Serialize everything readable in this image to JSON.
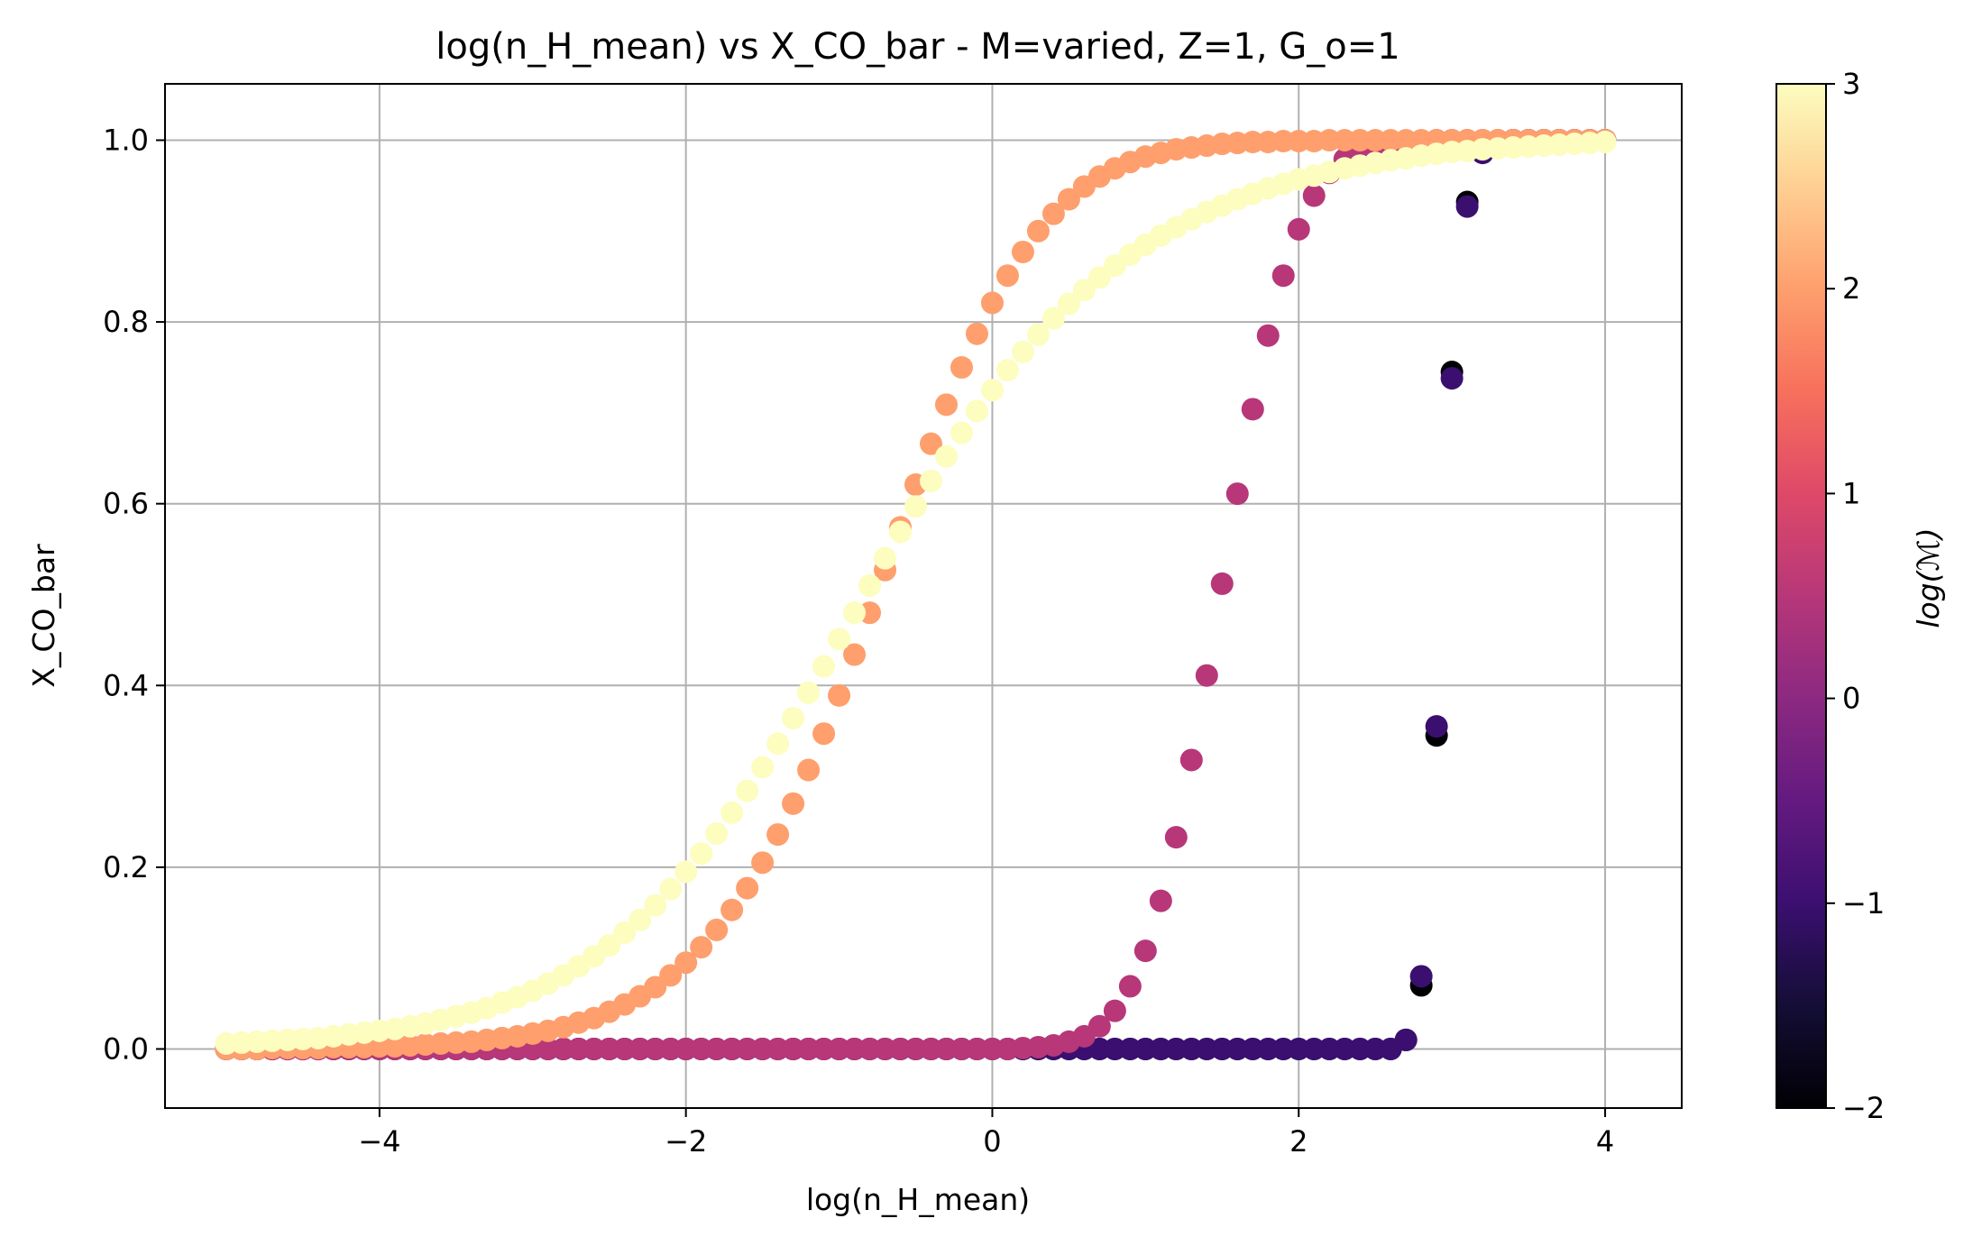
{
  "chart_data": {
    "type": "scatter",
    "title": "log(n_H_mean) vs X_CO_bar - M=varied, Z=1, G_o=1",
    "xlabel": "log(n_H_mean)",
    "ylabel": "X_CO_bar",
    "xlim": [
      -5.4,
      4.5
    ],
    "ylim": [
      -0.065,
      1.062
    ],
    "xticks": [
      -4,
      -2,
      0,
      2,
      4
    ],
    "xtick_labels": [
      "−4",
      "−2",
      "0",
      "2",
      "4"
    ],
    "yticks": [
      0.0,
      0.2,
      0.4,
      0.6,
      0.8,
      1.0
    ],
    "ytick_labels": [
      "0.0",
      "0.2",
      "0.4",
      "0.6",
      "0.8",
      "1.0"
    ],
    "grid": true,
    "colormap": "magma",
    "colorbar": {
      "label": "log(ℳ)",
      "range": [
        -2,
        3
      ],
      "ticks": [
        -2,
        -1,
        0,
        1,
        2,
        3
      ],
      "tick_labels": [
        "−2",
        "−1",
        "0",
        "1",
        "2",
        "3"
      ],
      "colors": [
        "#000004",
        "#140e36",
        "#3b0f70",
        "#641a80",
        "#8c2981",
        "#b73779",
        "#de4968",
        "#f7705c",
        "#fe9f6d",
        "#fecf92",
        "#fcfdbf"
      ]
    },
    "series_note": "points share x grid from -5 to 4 in steps of 0.1; color encodes log(M)",
    "x_start": -5,
    "x_end": 4,
    "x_step": 0.1,
    "series": [
      {
        "log_M": -2,
        "color": "#000004",
        "y": [
          0,
          0,
          0,
          0,
          0,
          0,
          0,
          0,
          0,
          0,
          0,
          0,
          0,
          0,
          0,
          0,
          0,
          0,
          0,
          0,
          0,
          0,
          0,
          0,
          0,
          0,
          0,
          0,
          0,
          0,
          0,
          0,
          0,
          0,
          0,
          0,
          0,
          0,
          0,
          0,
          0,
          0,
          0,
          0,
          0,
          0,
          0,
          0,
          0,
          0,
          0,
          0,
          0,
          0,
          0,
          0,
          0,
          0,
          0,
          0,
          0,
          0,
          0,
          0,
          0,
          0,
          0,
          0,
          0,
          0,
          0,
          0,
          0,
          0,
          0,
          0,
          0,
          0.01,
          0.07,
          0.345,
          0.745,
          0.932,
          0.988,
          0.999,
          1,
          1,
          1,
          1,
          1,
          1,
          1
        ]
      },
      {
        "log_M": -1,
        "color": "#3b0f70",
        "y": [
          0,
          0,
          0,
          0,
          0,
          0,
          0,
          0,
          0,
          0,
          0,
          0,
          0,
          0,
          0,
          0,
          0,
          0,
          0,
          0,
          0,
          0,
          0,
          0,
          0,
          0,
          0,
          0,
          0,
          0,
          0,
          0,
          0,
          0,
          0,
          0,
          0,
          0,
          0,
          0,
          0,
          0,
          0,
          0,
          0,
          0,
          0,
          0,
          0,
          0,
          0,
          0,
          0,
          0,
          0,
          0,
          0,
          0,
          0,
          0,
          0,
          0,
          0,
          0,
          0,
          0,
          0,
          0,
          0,
          0,
          0,
          0,
          0,
          0,
          0,
          0,
          0,
          0.01,
          0.08,
          0.355,
          0.738,
          0.927,
          0.986,
          0.999,
          1,
          1,
          1,
          1,
          1,
          1,
          1
        ]
      },
      {
        "log_M": 0.5,
        "color": "#b73779",
        "y": [
          0,
          0,
          0,
          0,
          0,
          0,
          0,
          0,
          0,
          0,
          0,
          0,
          0,
          0,
          0,
          0,
          0,
          0,
          0,
          0,
          0,
          0,
          0,
          0,
          0,
          0,
          0,
          0,
          0,
          0,
          0,
          0,
          0,
          0,
          0,
          0,
          0,
          0,
          0,
          0,
          0,
          0,
          0,
          0,
          0,
          0,
          0,
          0,
          0,
          0,
          0,
          0,
          0.001,
          0.002,
          0.004,
          0.008,
          0.014,
          0.025,
          0.042,
          0.069,
          0.108,
          0.163,
          0.233,
          0.318,
          0.411,
          0.512,
          0.611,
          0.704,
          0.785,
          0.851,
          0.902,
          0.939,
          0.964,
          0.979,
          0.988,
          0.994,
          0.997,
          0.998,
          0.999,
          1,
          1,
          1,
          1,
          1,
          1,
          1,
          1,
          1,
          1,
          1,
          1
        ]
      },
      {
        "log_M": 2,
        "color": "#fe9f6d",
        "y": [
          0,
          0,
          0,
          0.001,
          0.001,
          0.001,
          0.001,
          0.002,
          0.002,
          0.002,
          0.003,
          0.003,
          0.004,
          0.005,
          0.006,
          0.007,
          0.008,
          0.01,
          0.012,
          0.014,
          0.017,
          0.02,
          0.024,
          0.029,
          0.034,
          0.041,
          0.049,
          0.058,
          0.068,
          0.081,
          0.095,
          0.112,
          0.131,
          0.153,
          0.177,
          0.205,
          0.236,
          0.27,
          0.307,
          0.347,
          0.389,
          0.434,
          0.48,
          0.527,
          0.574,
          0.621,
          0.666,
          0.709,
          0.75,
          0.787,
          0.821,
          0.851,
          0.877,
          0.9,
          0.919,
          0.935,
          0.949,
          0.96,
          0.969,
          0.976,
          0.982,
          0.986,
          0.99,
          0.992,
          0.994,
          0.996,
          0.997,
          0.998,
          0.998,
          0.999,
          0.999,
          0.999,
          1,
          1,
          1,
          1,
          1,
          1,
          1,
          1,
          1,
          1,
          1,
          1,
          1,
          1,
          1,
          1,
          1,
          1,
          1
        ]
      },
      {
        "log_M": 3,
        "color": "#fcfdbf",
        "y": [
          0.006,
          0.007,
          0.008,
          0.009,
          0.01,
          0.011,
          0.012,
          0.014,
          0.016,
          0.018,
          0.02,
          0.022,
          0.025,
          0.028,
          0.032,
          0.036,
          0.04,
          0.045,
          0.051,
          0.057,
          0.064,
          0.072,
          0.081,
          0.091,
          0.102,
          0.114,
          0.128,
          0.142,
          0.158,
          0.176,
          0.195,
          0.215,
          0.237,
          0.26,
          0.284,
          0.31,
          0.336,
          0.364,
          0.392,
          0.421,
          0.451,
          0.48,
          0.51,
          0.54,
          0.569,
          0.597,
          0.625,
          0.652,
          0.678,
          0.702,
          0.725,
          0.747,
          0.767,
          0.786,
          0.804,
          0.82,
          0.835,
          0.849,
          0.862,
          0.874,
          0.885,
          0.895,
          0.904,
          0.913,
          0.921,
          0.928,
          0.935,
          0.941,
          0.947,
          0.952,
          0.957,
          0.961,
          0.965,
          0.969,
          0.972,
          0.975,
          0.978,
          0.98,
          0.983,
          0.985,
          0.987,
          0.988,
          0.99,
          0.991,
          0.992,
          0.993,
          0.994,
          0.995,
          0.996,
          0.997,
          0.998
        ]
      }
    ]
  }
}
